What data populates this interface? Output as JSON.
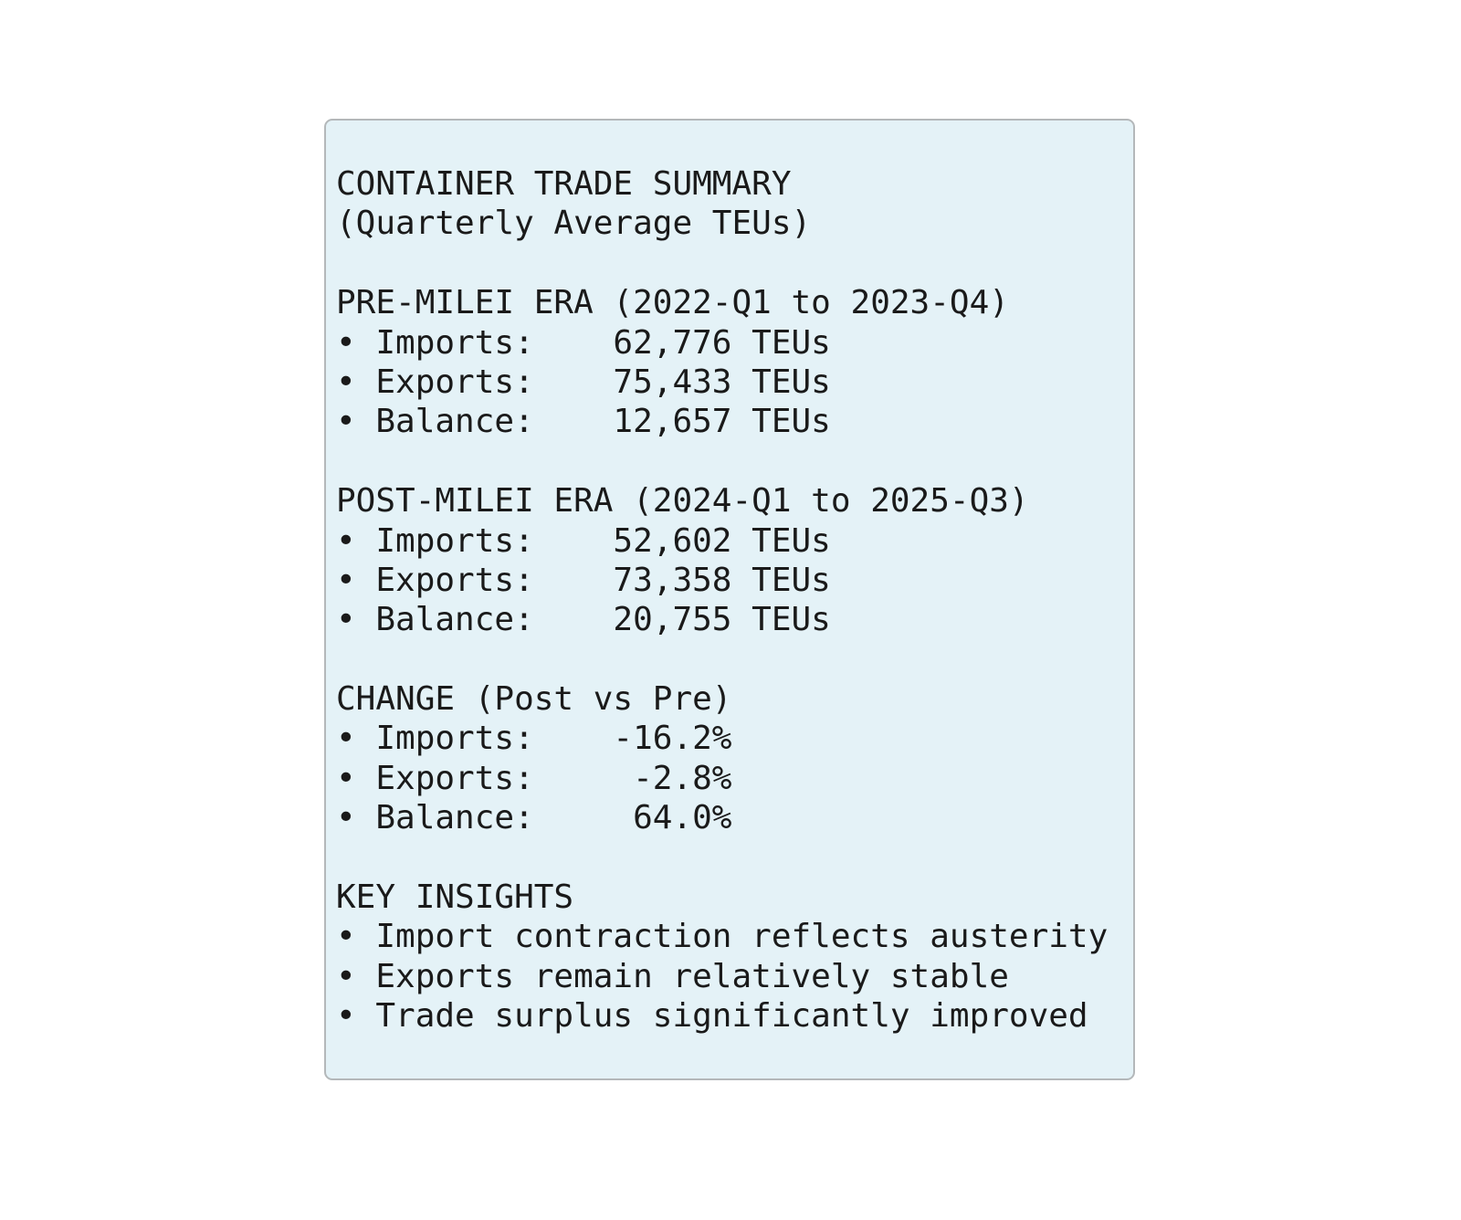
{
  "panel": {
    "title": "CONTAINER TRADE SUMMARY",
    "subtitle": "(Quarterly Average TEUs)",
    "sections": [
      {
        "heading": "PRE-MILEI ERA (2022-Q1 to 2023-Q4)",
        "items": [
          {
            "label": "• Imports:",
            "value": "62,776 TEUs"
          },
          {
            "label": "• Exports:",
            "value": "75,433 TEUs"
          },
          {
            "label": "• Balance:",
            "value": "12,657 TEUs"
          }
        ]
      },
      {
        "heading": "POST-MILEI ERA (2024-Q1 to 2025-Q3)",
        "items": [
          {
            "label": "• Imports:",
            "value": "52,602 TEUs"
          },
          {
            "label": "• Exports:",
            "value": "73,358 TEUs"
          },
          {
            "label": "• Balance:",
            "value": "20,755 TEUs"
          }
        ]
      },
      {
        "heading": "CHANGE (Post vs Pre)",
        "items": [
          {
            "label": "• Imports:",
            "value": "-16.2%"
          },
          {
            "label": "• Exports:",
            "value": "-2.8%"
          },
          {
            "label": "• Balance:",
            "value": "64.0%"
          }
        ]
      }
    ],
    "insights": {
      "heading": "KEY INSIGHTS",
      "items": [
        "• Import contraction reflects austerity",
        "• Exports remain relatively stable",
        "• Trade surplus significantly improved"
      ]
    }
  }
}
